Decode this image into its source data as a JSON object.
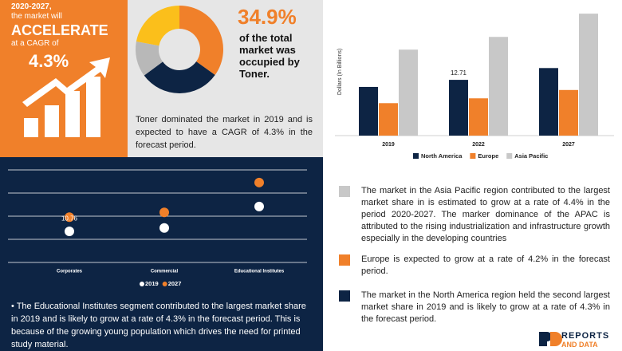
{
  "cagr": {
    "line1": "2020-2027,",
    "line2": "the market will",
    "headline": "ACCELERATE",
    "line3": "at a CAGR of",
    "rate": "4.3%"
  },
  "toner": {
    "share": "34.9%",
    "caption": "of the total market was occupied by Toner.",
    "text": "Toner dominated the market in 2019 and is expected to have a CAGR of 4.3% in the forecast period."
  },
  "chart_data": [
    {
      "type": "pie",
      "donut": true,
      "values": [
        34.9,
        30,
        13,
        22.1
      ],
      "colors": [
        "#f0802a",
        "#0d2444",
        "#b8b8b8",
        "#fbbf1b"
      ]
    },
    {
      "type": "bar",
      "y_label": "Dollars (In Billions)",
      "categories": [
        "2019",
        "2022",
        "2027"
      ],
      "ylim": [
        0,
        30
      ],
      "series": [
        {
          "name": "North America",
          "color": "#0d2444",
          "values": [
            11.1,
            12.71,
            15.4
          ],
          "value_labels": [
            null,
            "12.71",
            null
          ]
        },
        {
          "name": "Europe",
          "color": "#f0802a",
          "values": [
            7.4,
            8.5,
            10.4
          ]
        },
        {
          "name": "Asia Pacific",
          "color": "#c8c8c8",
          "values": [
            19.6,
            22.5,
            27.8
          ]
        }
      ]
    },
    {
      "type": "dot",
      "categories": [
        "Corporates",
        "Commercial",
        "Educational Institutes"
      ],
      "ylim": [
        0,
        22
      ],
      "yticks": [
        0,
        5.5,
        11,
        16.5,
        22
      ],
      "grid": true,
      "series": [
        {
          "name": "2019",
          "color": "#ffffff",
          "values": [
            7.4,
            8.2,
            13.3
          ]
        },
        {
          "name": "2027",
          "color": "#f0802a",
          "values": [
            10.76,
            11.9,
            19.0
          ],
          "value_labels": [
            "10.76",
            null,
            null
          ]
        }
      ]
    }
  ],
  "notes": {
    "segment": "• The Educational Institutes segment contributed to the largest market share in 2019 and is likely to grow at a rate of 4.3% in the forecast period. This is because of the growing young population which drives the need for printed study material.",
    "regions": [
      {
        "color": "#c8c8c8",
        "text": "The market in the Asia Pacific region contributed to the largest market share in is estimated to grow at a rate of 4.4% in the period 2020-2027. The marker dominance of the APAC is attributed to the rising industrialization and infrastructure growth especially in the developing countries"
      },
      {
        "color": "#f0802a",
        "text": "Europe is expected to grow at a rate of 4.2% in the forecast period."
      },
      {
        "color": "#0d2444",
        "text": "The market in the North America region held the second largest market share in 2019 and is likely to grow at a rate of 4.3% in the forecast period."
      }
    ]
  },
  "logo": {
    "brand": "REPORTS",
    "sub": "AND DATA"
  }
}
